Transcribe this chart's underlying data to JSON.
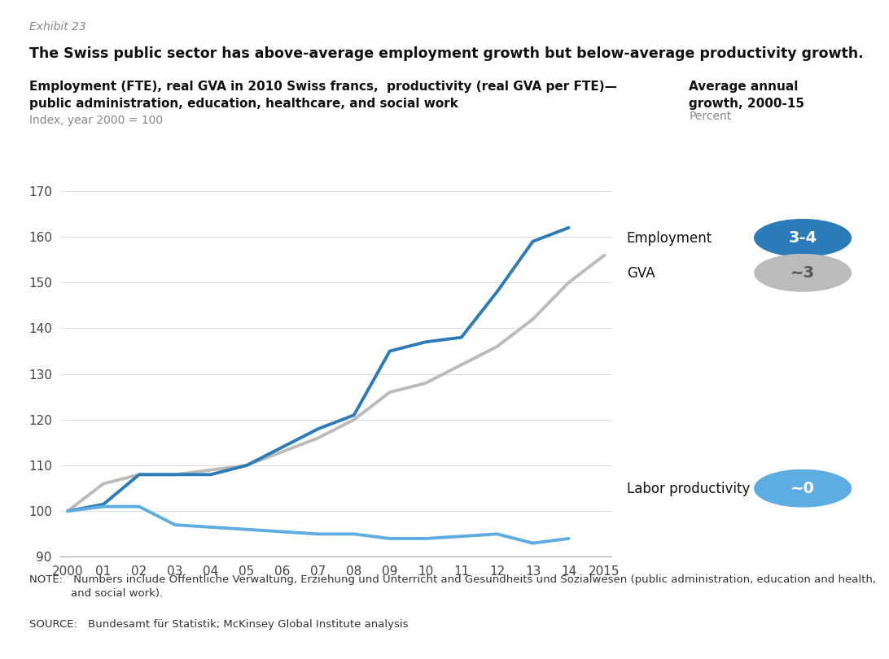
{
  "exhibit_label": "Exhibit 23",
  "title": "The Swiss public sector has above-average employment growth but below-average productivity growth.",
  "subtitle_bold": "Employment (FTE), real GVA in 2010 Swiss francs,  productivity (real GVA per FTE)—",
  "subtitle_bold2": "public administration, education, healthcare, and social work",
  "subtitle_index": "Index, year 2000 = 100",
  "right_header_bold": "Average annual\ngrowth, 2000-15",
  "right_header_sub": "Percent",
  "years": [
    2000,
    2001,
    2002,
    2003,
    2004,
    2005,
    2006,
    2007,
    2008,
    2009,
    2010,
    2011,
    2012,
    2013,
    2014,
    2015
  ],
  "employment": [
    100,
    101.5,
    108,
    108,
    108,
    110,
    114,
    118,
    121,
    135,
    137,
    138,
    148,
    159,
    162,
    null
  ],
  "gva": [
    100,
    106,
    108,
    108,
    109,
    110,
    113,
    116,
    120,
    126,
    128,
    132,
    136,
    142,
    150,
    156
  ],
  "productivity": [
    100,
    101,
    101,
    97,
    96.5,
    96,
    95.5,
    95,
    95,
    94,
    94,
    94.5,
    95,
    93,
    94,
    null
  ],
  "employment_color": "#2B7BB9",
  "gva_color": "#BBBBBB",
  "productivity_color": "#5DADE2",
  "employment_badge_color": "#2B7BB9",
  "gva_badge_color": "#BBBBBB",
  "productivity_badge_color": "#5DADE2",
  "employment_label": "Employment",
  "gva_label": "GVA",
  "productivity_label": "Labor productivity",
  "employment_badge": "3-4",
  "gva_badge": "~3",
  "productivity_badge": "~0",
  "ylim": [
    90,
    170
  ],
  "yticks": [
    90,
    100,
    110,
    120,
    130,
    140,
    150,
    160,
    170
  ],
  "note": "NOTE: Numbers include Öffentliche Verwaltung, Erziehung und Unterricht and Gesundheits und Sozialwesen (public administration, education and health,",
  "note2": "            and social work).",
  "source": "SOURCE: Bundesamt für Statistik; McKinsey Global Institute analysis",
  "background_color": "#FFFFFF",
  "line_width": 2.8
}
